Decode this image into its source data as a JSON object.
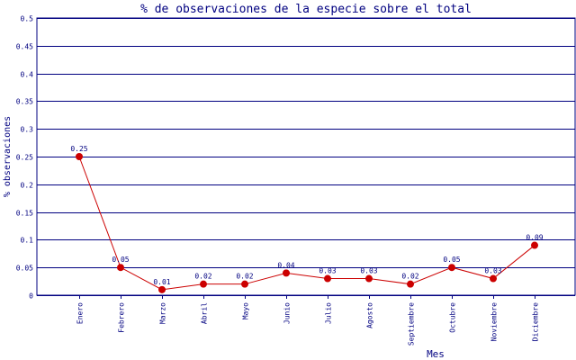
{
  "chart_data": {
    "type": "line",
    "title": "% de observaciones de la especie sobre el total",
    "xlabel": "Mes",
    "ylabel": "% observaciones",
    "categories": [
      "Enero",
      "Febrero",
      "Marzo",
      "Abril",
      "Mayo",
      "Junio",
      "Julio",
      "Agosto",
      "Septiembre",
      "Octubre",
      "Noviembre",
      "Diciembre"
    ],
    "values": [
      0.25,
      0.05,
      0.01,
      0.02,
      0.02,
      0.04,
      0.03,
      0.03,
      0.02,
      0.05,
      0.03,
      0.09
    ],
    "data_labels": [
      "0.25",
      "0.05",
      "0.01",
      "0.02",
      "0.02",
      "0.04",
      "0.03",
      "0.03",
      "0.02",
      "0.05",
      "0.03",
      "0.09"
    ],
    "ylim": [
      0,
      0.5
    ],
    "yticks": [
      "0",
      "0.05",
      "0.1",
      "0.15",
      "0.2",
      "0.25",
      "0.3",
      "0.35",
      "0.4",
      "0.45",
      "0.5"
    ],
    "grid": true,
    "colors": {
      "line": "#cc0000",
      "marker": "#cc0000",
      "grid": "#000080",
      "text": "#000080"
    }
  }
}
